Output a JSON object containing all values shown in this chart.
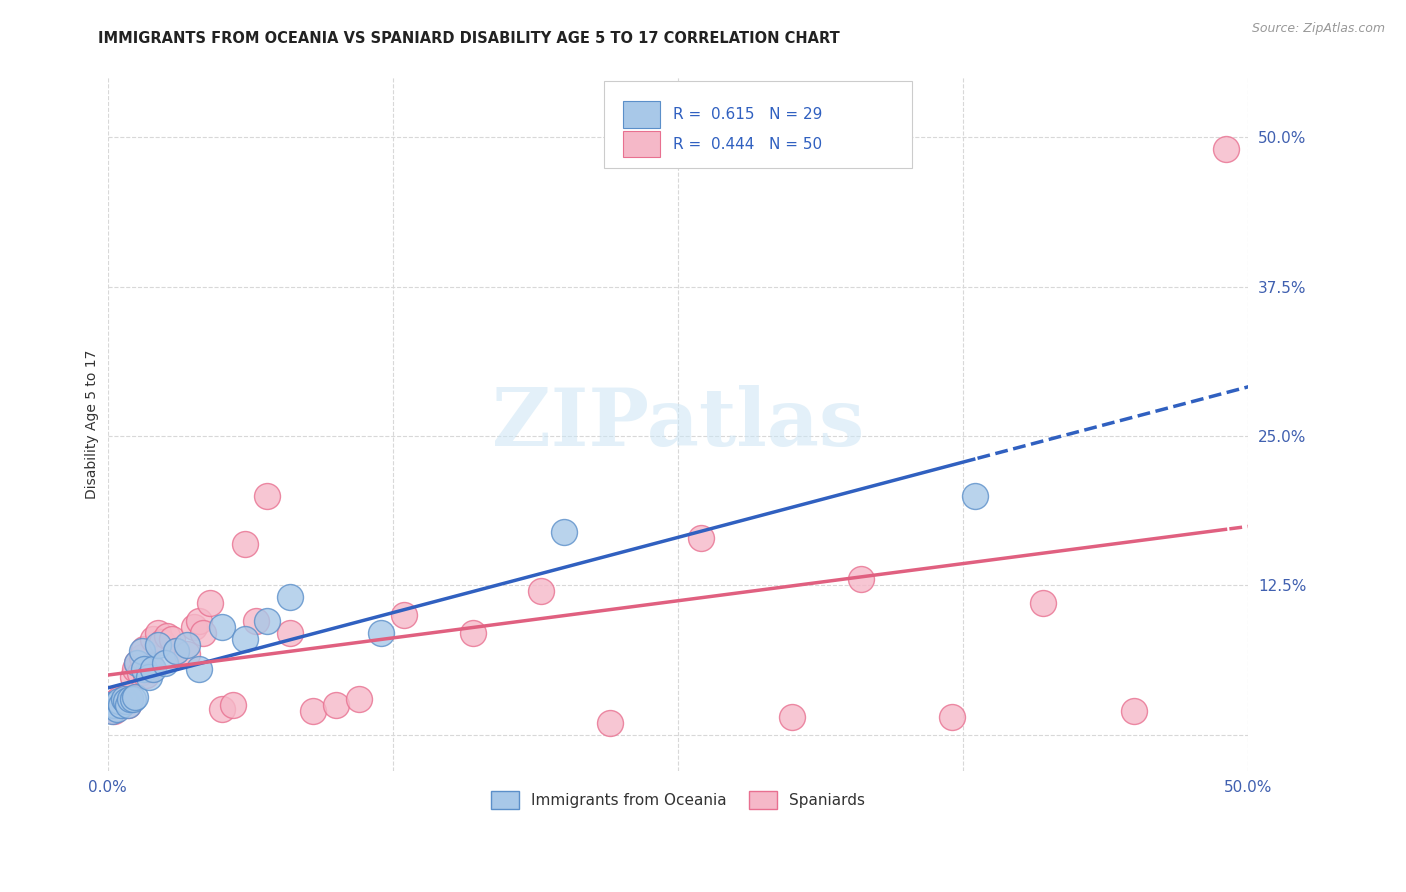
{
  "title": "IMMIGRANTS FROM OCEANIA VS SPANIARD DISABILITY AGE 5 TO 17 CORRELATION CHART",
  "source": "Source: ZipAtlas.com",
  "ylabel": "Disability Age 5 to 17",
  "xlim": [
    0.0,
    0.5
  ],
  "ylim": [
    -0.03,
    0.55
  ],
  "ytick_values": [
    0.0,
    0.125,
    0.25,
    0.375,
    0.5
  ],
  "ytick_labels": [
    "",
    "12.5%",
    "25.0%",
    "37.5%",
    "50.0%"
  ],
  "xtick_values": [
    0.0,
    0.125,
    0.25,
    0.375,
    0.5
  ],
  "xtick_labels": [
    "0.0%",
    "",
    "",
    "",
    "50.0%"
  ],
  "grid_color": "#d8d8d8",
  "background_color": "#ffffff",
  "scatter_blue_color": "#a8c8e8",
  "scatter_blue_edge": "#5b8fc9",
  "scatter_pink_color": "#f5b8c8",
  "scatter_pink_edge": "#e87090",
  "line_blue_color": "#3060c0",
  "line_pink_color": "#e06080",
  "legend_R1": "0.615",
  "legend_N1": "29",
  "legend_R2": "0.444",
  "legend_N2": "50",
  "blue_x": [
    0.001,
    0.002,
    0.003,
    0.004,
    0.005,
    0.006,
    0.007,
    0.008,
    0.009,
    0.01,
    0.011,
    0.012,
    0.013,
    0.015,
    0.016,
    0.018,
    0.02,
    0.022,
    0.025,
    0.03,
    0.035,
    0.04,
    0.05,
    0.06,
    0.07,
    0.08,
    0.12,
    0.2,
    0.38
  ],
  "blue_y": [
    0.025,
    0.02,
    0.025,
    0.022,
    0.028,
    0.025,
    0.03,
    0.028,
    0.025,
    0.03,
    0.03,
    0.032,
    0.06,
    0.07,
    0.055,
    0.048,
    0.055,
    0.075,
    0.06,
    0.07,
    0.075,
    0.055,
    0.09,
    0.08,
    0.095,
    0.115,
    0.085,
    0.17,
    0.2
  ],
  "pink_x": [
    0.001,
    0.002,
    0.003,
    0.004,
    0.005,
    0.006,
    0.007,
    0.008,
    0.009,
    0.01,
    0.011,
    0.012,
    0.013,
    0.014,
    0.015,
    0.016,
    0.017,
    0.018,
    0.019,
    0.02,
    0.022,
    0.024,
    0.026,
    0.028,
    0.03,
    0.035,
    0.038,
    0.04,
    0.042,
    0.045,
    0.05,
    0.055,
    0.06,
    0.065,
    0.07,
    0.08,
    0.09,
    0.1,
    0.11,
    0.13,
    0.16,
    0.19,
    0.22,
    0.26,
    0.3,
    0.33,
    0.37,
    0.41,
    0.45,
    0.49
  ],
  "pink_y": [
    0.025,
    0.022,
    0.02,
    0.028,
    0.03,
    0.025,
    0.028,
    0.032,
    0.025,
    0.03,
    0.048,
    0.055,
    0.06,
    0.052,
    0.065,
    0.072,
    0.05,
    0.055,
    0.058,
    0.08,
    0.085,
    0.078,
    0.083,
    0.08,
    0.07,
    0.068,
    0.09,
    0.095,
    0.085,
    0.11,
    0.022,
    0.025,
    0.16,
    0.095,
    0.2,
    0.085,
    0.02,
    0.025,
    0.03,
    0.1,
    0.085,
    0.12,
    0.01,
    0.165,
    0.015,
    0.13,
    0.015,
    0.11,
    0.02,
    0.49
  ]
}
